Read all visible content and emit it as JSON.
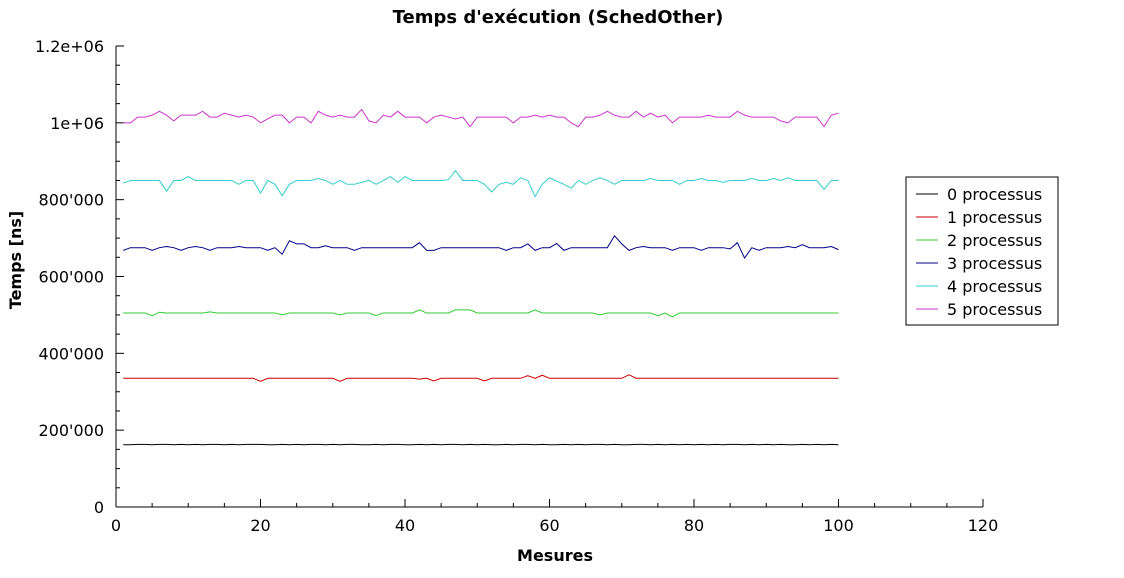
{
  "chart_data": {
    "type": "line",
    "title": "Temps d'exécution (SchedOther)",
    "xlabel": "Mesures",
    "ylabel": "Temps [ns]",
    "xlim": [
      0,
      120
    ],
    "ylim": [
      0,
      1200000
    ],
    "x_ticks": [
      0,
      20,
      40,
      60,
      80,
      100,
      120
    ],
    "x_tick_labels": [
      "0",
      "20",
      "40",
      "60",
      "80",
      "100",
      "120"
    ],
    "y_ticks": [
      0,
      200000,
      400000,
      600000,
      800000,
      1000000,
      1200000
    ],
    "y_tick_labels": [
      "0",
      "200'000",
      "400'000",
      "600'000",
      "800'000",
      "1e+06",
      "1.2e+06"
    ],
    "grid": false,
    "legend_placement": "right",
    "x_start": 1,
    "x_step": 1,
    "series": [
      {
        "name": "0 processus",
        "color": "#000000",
        "values": [
          162000,
          162000,
          163000,
          163000,
          162000,
          163000,
          163000,
          162000,
          163000,
          162000,
          163000,
          162000,
          163000,
          163000,
          162000,
          163000,
          162000,
          163000,
          163000,
          163000,
          162000,
          162000,
          163000,
          162000,
          163000,
          162000,
          163000,
          163000,
          162000,
          163000,
          162000,
          163000,
          163000,
          162000,
          162000,
          163000,
          162000,
          163000,
          163000,
          162000,
          162000,
          163000,
          162000,
          163000,
          162000,
          163000,
          163000,
          162000,
          163000,
          162000,
          163000,
          162000,
          162000,
          163000,
          162000,
          163000,
          163000,
          162000,
          163000,
          162000,
          162000,
          163000,
          162000,
          163000,
          162000,
          163000,
          163000,
          162000,
          163000,
          162000,
          162000,
          163000,
          163000,
          162000,
          163000,
          162000,
          163000,
          162000,
          163000,
          162000,
          163000,
          162000,
          163000,
          162000,
          163000,
          163000,
          162000,
          163000,
          162000,
          163000,
          162000,
          163000,
          162000,
          162000,
          163000,
          162000,
          163000,
          162000,
          163000,
          162000
        ]
      },
      {
        "name": "1 processus",
        "color": "#cc0000",
        "values": [
          335000,
          335000,
          335000,
          335000,
          335000,
          335000,
          335000,
          335000,
          335000,
          335000,
          335000,
          335000,
          335000,
          335000,
          335000,
          335000,
          335000,
          335000,
          335000,
          327000,
          335000,
          335000,
          335000,
          335000,
          335000,
          335000,
          335000,
          335000,
          335000,
          335000,
          327000,
          335000,
          335000,
          335000,
          335000,
          335000,
          335000,
          335000,
          335000,
          335000,
          335000,
          333000,
          335000,
          328000,
          335000,
          335000,
          335000,
          335000,
          335000,
          335000,
          328000,
          335000,
          335000,
          335000,
          335000,
          335000,
          342000,
          335000,
          343000,
          335000,
          335000,
          335000,
          335000,
          335000,
          335000,
          335000,
          335000,
          335000,
          335000,
          335000,
          344000,
          335000,
          335000,
          335000,
          335000,
          335000,
          335000,
          335000,
          335000,
          335000,
          335000,
          335000,
          335000,
          335000,
          335000,
          335000,
          335000,
          335000,
          335000,
          335000,
          335000,
          335000,
          335000,
          335000,
          335000,
          335000,
          335000,
          335000,
          335000,
          335000
        ]
      },
      {
        "name": "2 processus",
        "color": "#33cc33",
        "values": [
          505000,
          505000,
          505000,
          505000,
          498000,
          507000,
          505000,
          505000,
          505000,
          505000,
          505000,
          505000,
          508000,
          505000,
          505000,
          505000,
          505000,
          505000,
          505000,
          505000,
          505000,
          505000,
          500000,
          505000,
          505000,
          505000,
          505000,
          505000,
          505000,
          505000,
          500000,
          505000,
          505000,
          505000,
          505000,
          498000,
          505000,
          505000,
          505000,
          505000,
          505000,
          513000,
          505000,
          505000,
          505000,
          505000,
          513000,
          513000,
          513000,
          505000,
          505000,
          505000,
          505000,
          505000,
          505000,
          505000,
          505000,
          513000,
          505000,
          505000,
          505000,
          505000,
          505000,
          505000,
          505000,
          505000,
          500000,
          505000,
          505000,
          505000,
          505000,
          505000,
          505000,
          505000,
          498000,
          505000,
          495000,
          505000,
          505000,
          505000,
          505000,
          505000,
          505000,
          505000,
          505000,
          505000,
          505000,
          505000,
          505000,
          505000,
          505000,
          505000,
          505000,
          505000,
          505000,
          505000,
          505000,
          505000,
          505000,
          505000
        ]
      },
      {
        "name": "3 processus",
        "color": "#000088",
        "values": [
          668000,
          675000,
          675000,
          675000,
          668000,
          675000,
          678000,
          675000,
          668000,
          675000,
          678000,
          675000,
          668000,
          675000,
          675000,
          675000,
          678000,
          675000,
          675000,
          675000,
          668000,
          675000,
          658000,
          693000,
          685000,
          685000,
          675000,
          675000,
          680000,
          675000,
          675000,
          675000,
          668000,
          675000,
          675000,
          675000,
          675000,
          675000,
          675000,
          675000,
          675000,
          688000,
          668000,
          668000,
          675000,
          675000,
          675000,
          675000,
          675000,
          675000,
          675000,
          675000,
          675000,
          668000,
          675000,
          675000,
          685000,
          668000,
          675000,
          675000,
          686000,
          668000,
          675000,
          675000,
          675000,
          675000,
          675000,
          675000,
          706000,
          685000,
          668000,
          675000,
          678000,
          675000,
          675000,
          675000,
          668000,
          675000,
          675000,
          675000,
          668000,
          675000,
          675000,
          675000,
          672000,
          688000,
          648000,
          675000,
          668000,
          675000,
          675000,
          675000,
          678000,
          675000,
          683000,
          675000,
          675000,
          675000,
          678000,
          670000
        ]
      },
      {
        "name": "4 processus",
        "color": "#33cccc",
        "values": [
          843000,
          850000,
          850000,
          850000,
          850000,
          850000,
          822000,
          850000,
          850000,
          860000,
          850000,
          850000,
          850000,
          850000,
          850000,
          850000,
          840000,
          850000,
          850000,
          817000,
          850000,
          840000,
          810000,
          840000,
          850000,
          850000,
          850000,
          855000,
          850000,
          840000,
          850000,
          840000,
          840000,
          845000,
          850000,
          840000,
          850000,
          860000,
          845000,
          860000,
          850000,
          850000,
          850000,
          850000,
          850000,
          852000,
          875000,
          850000,
          850000,
          850000,
          840000,
          820000,
          840000,
          845000,
          840000,
          857000,
          850000,
          808000,
          840000,
          857000,
          848000,
          840000,
          830000,
          850000,
          840000,
          850000,
          857000,
          850000,
          840000,
          850000,
          850000,
          850000,
          850000,
          855000,
          850000,
          850000,
          850000,
          840000,
          850000,
          850000,
          855000,
          850000,
          850000,
          845000,
          850000,
          850000,
          850000,
          855000,
          850000,
          850000,
          855000,
          850000,
          857000,
          850000,
          850000,
          850000,
          850000,
          827000,
          850000,
          850000
        ]
      },
      {
        "name": "5 processus",
        "color": "#cc33cc",
        "values": [
          1000000,
          1000000,
          1015000,
          1015000,
          1020000,
          1030000,
          1020000,
          1005000,
          1020000,
          1020000,
          1020000,
          1030000,
          1015000,
          1015000,
          1025000,
          1020000,
          1015000,
          1020000,
          1015000,
          1000000,
          1010000,
          1020000,
          1020000,
          1000000,
          1015000,
          1015000,
          1000000,
          1030000,
          1020000,
          1015000,
          1020000,
          1015000,
          1015000,
          1035000,
          1005000,
          1000000,
          1020000,
          1015000,
          1030000,
          1015000,
          1015000,
          1015000,
          1000000,
          1015000,
          1020000,
          1015000,
          1010000,
          1015000,
          990000,
          1015000,
          1015000,
          1015000,
          1015000,
          1015000,
          1000000,
          1015000,
          1015000,
          1020000,
          1015000,
          1020000,
          1015000,
          1015000,
          1000000,
          990000,
          1015000,
          1015000,
          1020000,
          1030000,
          1020000,
          1015000,
          1015000,
          1030000,
          1015000,
          1025000,
          1015000,
          1020000,
          1000000,
          1015000,
          1015000,
          1015000,
          1015000,
          1020000,
          1015000,
          1015000,
          1015000,
          1030000,
          1020000,
          1015000,
          1015000,
          1015000,
          1015000,
          1005000,
          1000000,
          1015000,
          1015000,
          1015000,
          1015000,
          990000,
          1020000,
          1025000
        ]
      }
    ]
  }
}
